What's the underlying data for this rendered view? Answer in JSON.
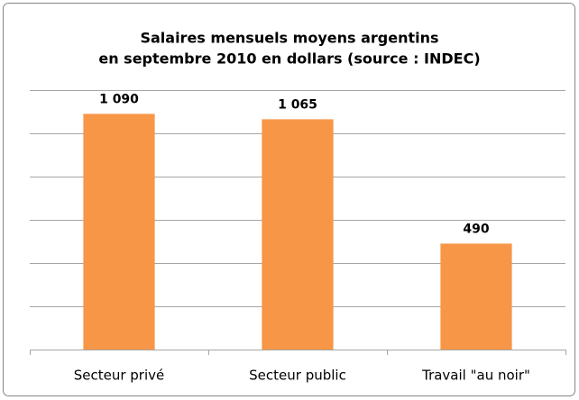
{
  "chart_data": {
    "type": "bar",
    "title": [
      "Salaires mensuels moyens argentins",
      "en septembre 2010 en dollars (source : INDEC)"
    ],
    "categories": [
      "Secteur privé",
      "Secteur public",
      "Travail \"au noir\""
    ],
    "values": [
      1090,
      1065,
      490
    ],
    "value_labels": [
      "1 090",
      "1 065",
      "490"
    ],
    "color": "#f79646",
    "ylim": [
      0,
      1200
    ],
    "yticks": [
      0,
      200,
      400,
      600,
      800,
      1000,
      1200
    ],
    "grid": true
  }
}
